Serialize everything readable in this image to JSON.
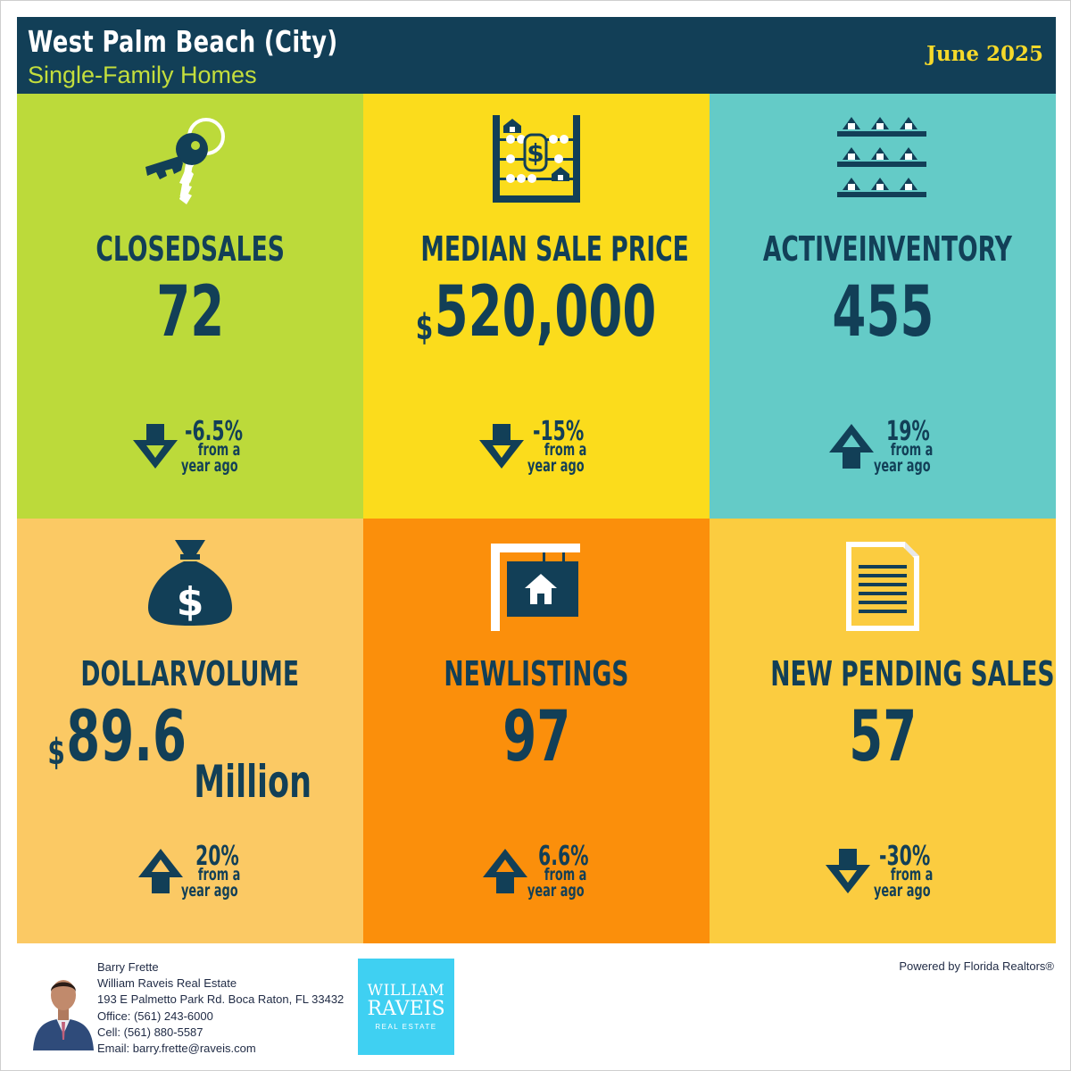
{
  "header": {
    "title": "West Palm Beach (City)",
    "subtitle": "Single-Family Homes",
    "date": "June 2025"
  },
  "colors": {
    "header_bg": "#123f57",
    "subtitle": "#c4de3c",
    "date": "#f5d92a",
    "text_dark": "#123f57",
    "closed_sales": "#bcda3a",
    "median_price": "#fbdc1c",
    "active_inventory": "#64cbc7",
    "dollar_volume": "#fbc964",
    "new_listings": "#fb8f0b",
    "pending_sales": "#fbcc40",
    "logo_bg": "#3fd0f2"
  },
  "tiles": [
    {
      "icon": "keys-icon",
      "label": "CLOSEDSALES",
      "value": "72",
      "change": "-6.5%",
      "direction": "down",
      "from": "from a",
      "ago": "year ago"
    },
    {
      "icon": "abacus-icon",
      "label": "MEDIAN SALE PRICE",
      "prefix": "$",
      "value": "520,000",
      "change": "-15%",
      "direction": "down",
      "from": "from a",
      "ago": "year ago"
    },
    {
      "icon": "houses-icon",
      "label": "ACTIVEINVENTORY",
      "value": "455",
      "change": "19%",
      "direction": "up",
      "from": "from a",
      "ago": "year ago"
    },
    {
      "icon": "money-bag-icon",
      "label": "DOLLARVOLUME",
      "prefix": "$",
      "value": "89.6",
      "unit": "Million",
      "change": "20%",
      "direction": "up",
      "from": "from a",
      "ago": "year ago"
    },
    {
      "icon": "for-sale-sign-icon",
      "label": "NEWLISTINGS",
      "value": "97",
      "change": "6.6%",
      "direction": "up",
      "from": "from a",
      "ago": "year ago"
    },
    {
      "icon": "document-icon",
      "label": "NEW PENDING SALES",
      "value": "57",
      "change": "-30%",
      "direction": "down",
      "from": "from a",
      "ago": "year ago"
    }
  ],
  "agent": {
    "name": "Barry Frette",
    "company": "William Raveis Real Estate",
    "address": "193 E Palmetto Park Rd. Boca Raton, FL 33432",
    "office": "Office: (561) 243-6000",
    "cell": "Cell: (561) 880-5587",
    "email": "Email: barry.frette@raveis.com"
  },
  "logo": {
    "line1": "WILLIAM",
    "line2": "RAVEIS",
    "line3": "REAL ESTATE"
  },
  "powered_by": "Powered by Florida Realtors®"
}
